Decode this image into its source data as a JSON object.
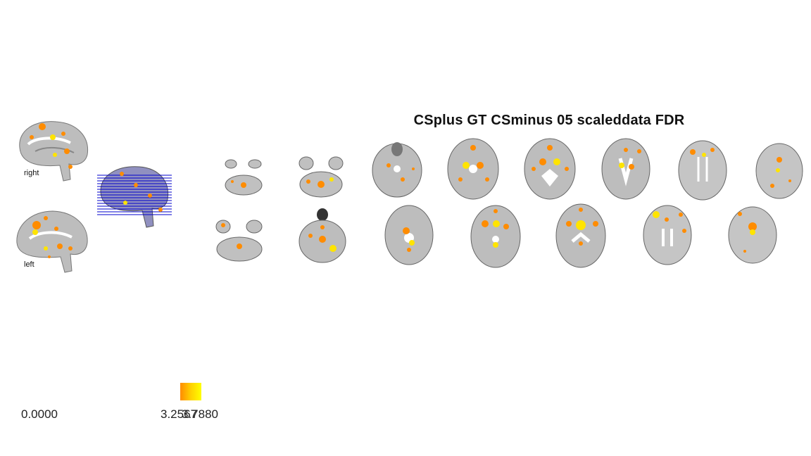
{
  "title": "CSplus GT CSminus 05 scaleddata FDR",
  "labels": {
    "right": "right",
    "left": "left"
  },
  "colorbar": {
    "ticks": [
      "0.0000",
      "3.2567",
      "3.7880"
    ],
    "colors": [
      "#ff8c00",
      "#ffd000",
      "#ffff00"
    ]
  },
  "colors": {
    "brain_gray": "#b5b5b5",
    "activation_orange": "#ff8c00",
    "activation_yellow": "#ffe400",
    "slice_lines": "#0000cc"
  }
}
